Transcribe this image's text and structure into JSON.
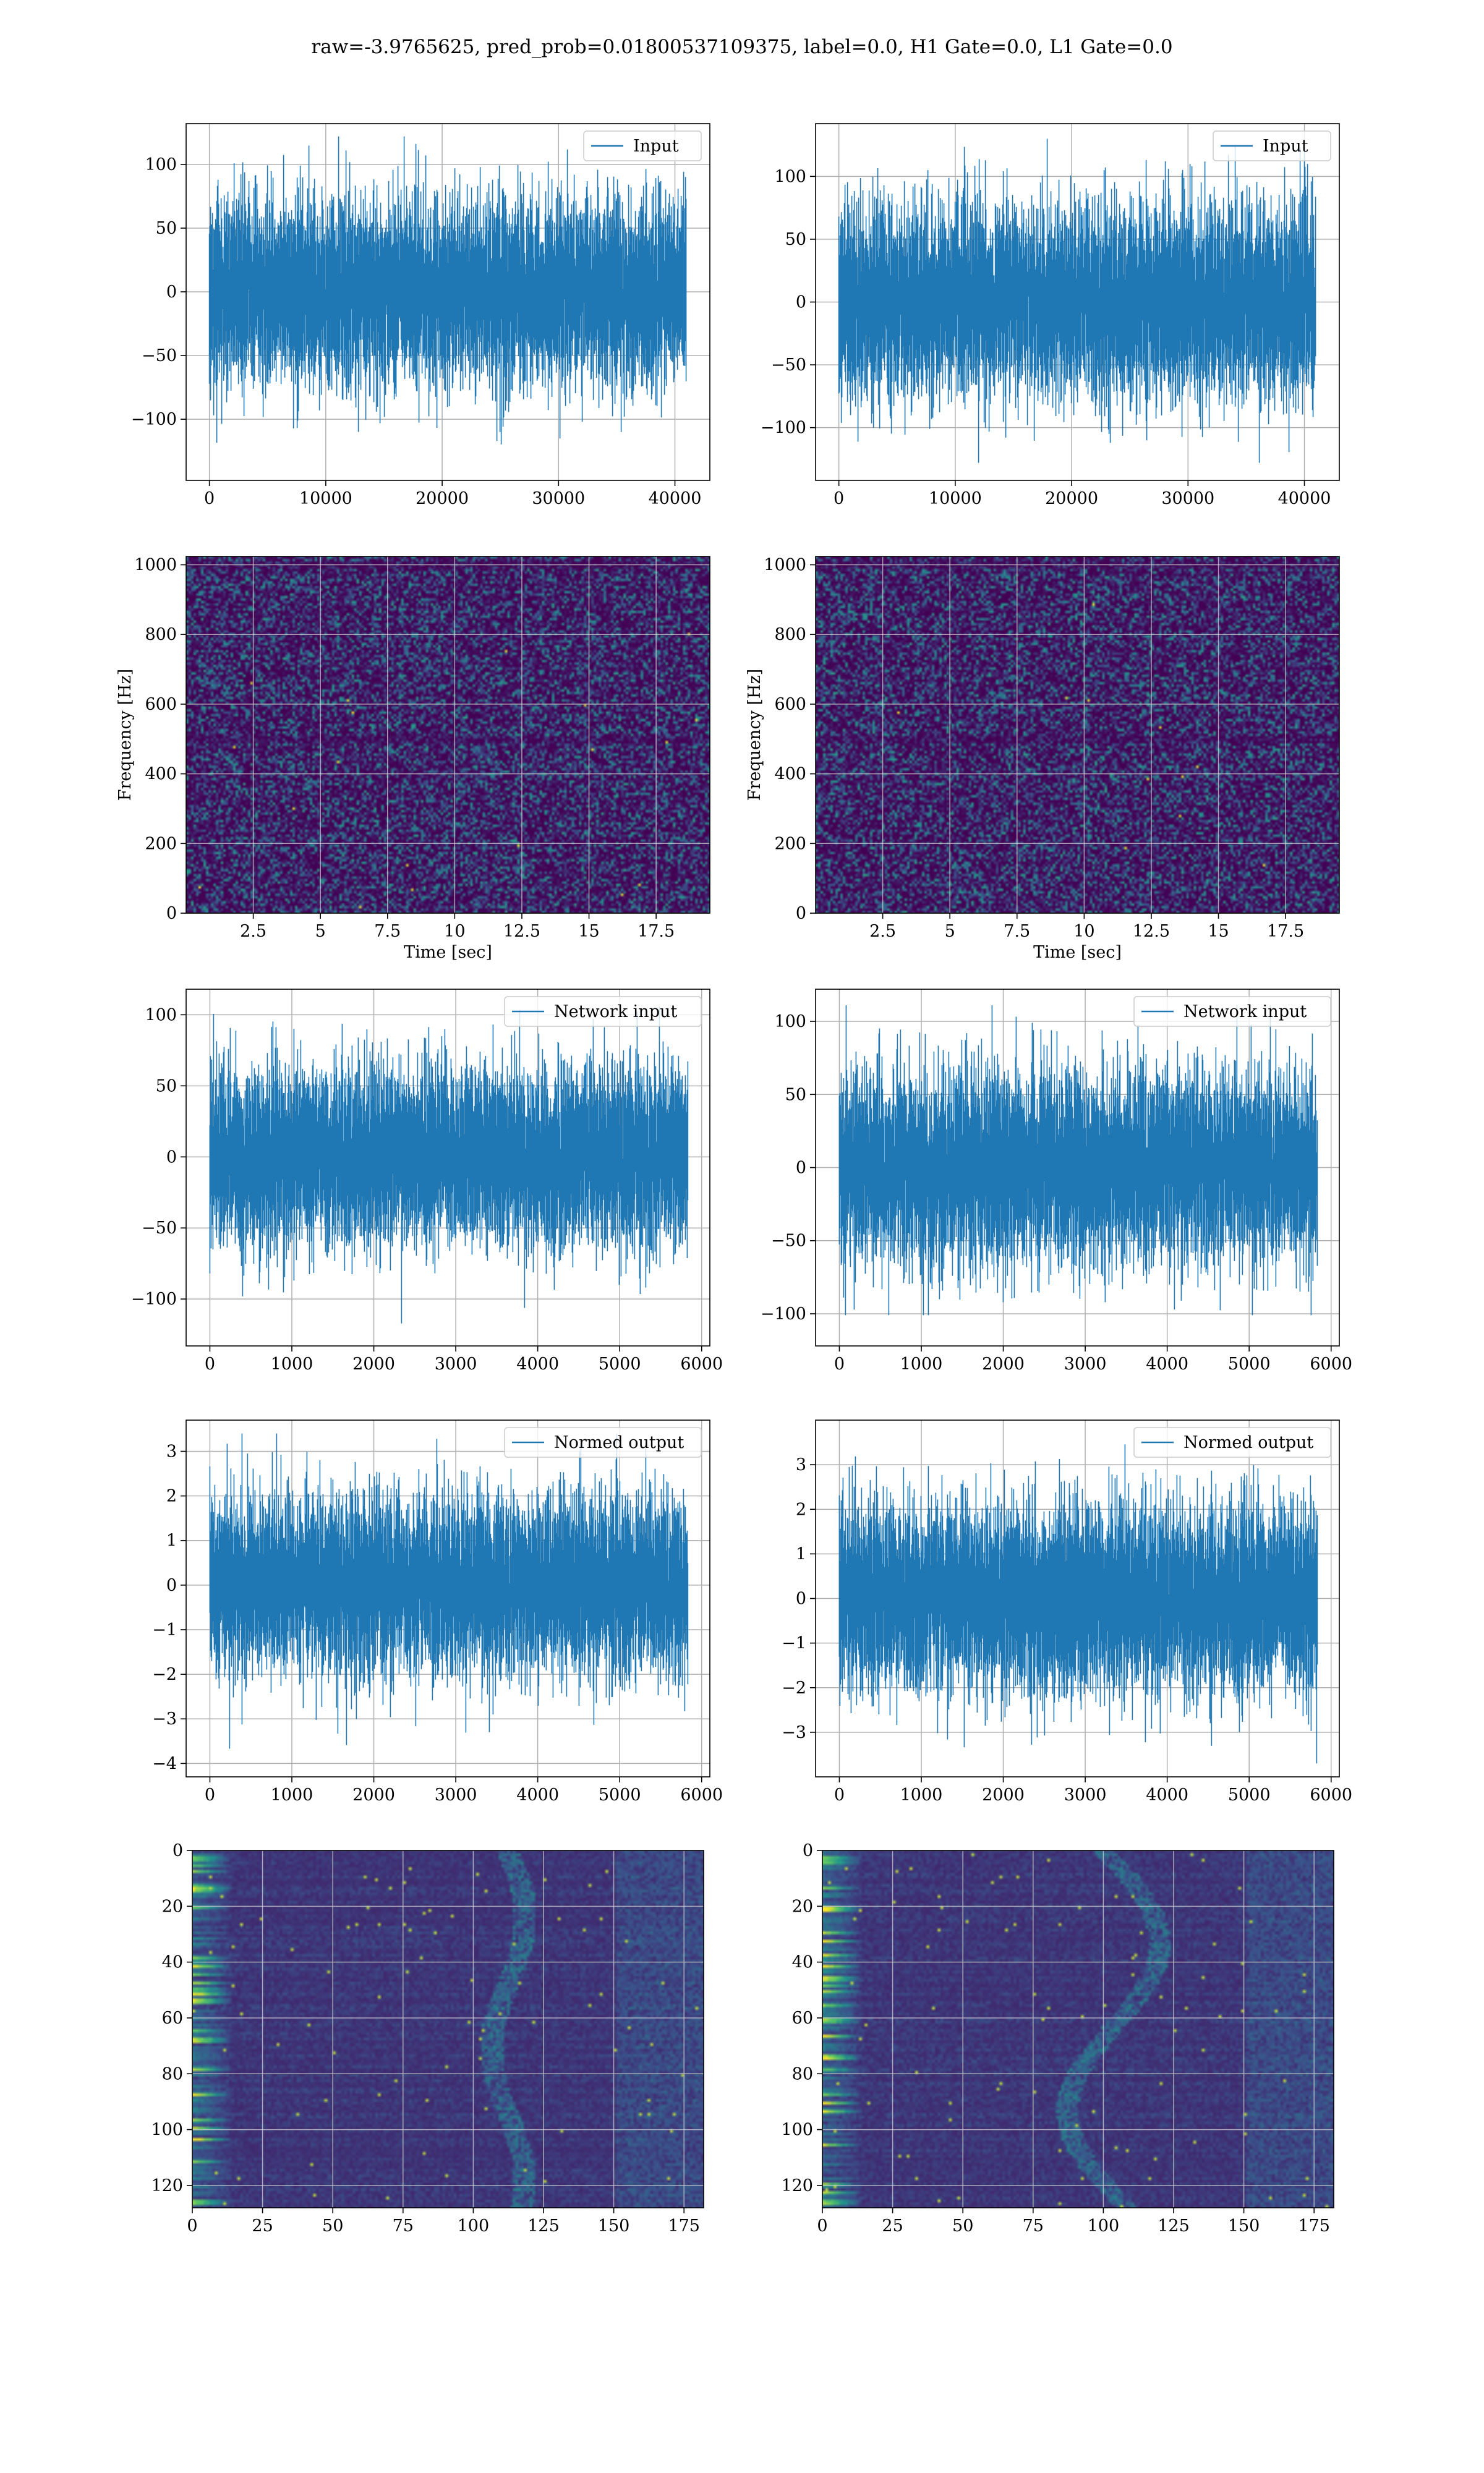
{
  "title": "raw=-3.9765625, pred_prob=0.01800537109375, label=0.0, H1 Gate=0.0, L1 Gate=0.0",
  "colors": {
    "line": "#1f77b4",
    "grid": "#b0b0b0",
    "spectrogram_low": "#440154",
    "spectrogram_high": "#fde725"
  },
  "chart_data": [
    {
      "id": "input-h1",
      "type": "line",
      "series": [
        {
          "name": "Input",
          "n": 40960,
          "amplitude_range": [
            -135,
            122
          ]
        }
      ],
      "xlim": [
        -2000,
        43000
      ],
      "ylim": [
        -148,
        132
      ],
      "xticks": [
        0,
        10000,
        20000,
        30000,
        40000
      ],
      "yticks": [
        -100,
        -50,
        0,
        50,
        100
      ],
      "xlabel": "",
      "ylabel": "",
      "grid": true,
      "legend": "upper right"
    },
    {
      "id": "input-l1",
      "type": "line",
      "series": [
        {
          "name": "Input",
          "n": 40960,
          "amplitude_range": [
            -128,
            130
          ]
        }
      ],
      "xlim": [
        -2000,
        43000
      ],
      "ylim": [
        -142,
        142
      ],
      "xticks": [
        0,
        10000,
        20000,
        30000,
        40000
      ],
      "yticks": [
        -100,
        -50,
        0,
        50,
        100
      ],
      "xlabel": "",
      "ylabel": "",
      "grid": true,
      "legend": "upper right"
    },
    {
      "id": "spectrogram-h1",
      "type": "heatmap",
      "xlim": [
        0,
        19.5
      ],
      "ylim": [
        0,
        1024
      ],
      "xticks": [
        2.5,
        5.0,
        7.5,
        10.0,
        12.5,
        15.0,
        17.5
      ],
      "yticks": [
        0,
        200,
        400,
        600,
        800,
        1000
      ],
      "xlabel": "Time [sec]",
      "ylabel": "Frequency [Hz]",
      "grid": true
    },
    {
      "id": "spectrogram-l1",
      "type": "heatmap",
      "xlim": [
        0,
        19.5
      ],
      "ylim": [
        0,
        1024
      ],
      "xticks": [
        2.5,
        5.0,
        7.5,
        10.0,
        12.5,
        15.0,
        17.5
      ],
      "yticks": [
        0,
        200,
        400,
        600,
        800,
        1000
      ],
      "xlabel": "Time [sec]",
      "ylabel": "Frequency [Hz]",
      "grid": true
    },
    {
      "id": "network-input-h1",
      "type": "line",
      "series": [
        {
          "name": "Network input",
          "n": 5830,
          "amplitude_range": [
            -122,
            106
          ]
        }
      ],
      "xlim": [
        -290,
        6100
      ],
      "ylim": [
        -133,
        118
      ],
      "xticks": [
        0,
        1000,
        2000,
        3000,
        4000,
        5000,
        6000
      ],
      "yticks": [
        -100,
        -50,
        0,
        50,
        100
      ],
      "xlabel": "",
      "ylabel": "",
      "grid": true,
      "legend": "upper right"
    },
    {
      "id": "network-input-l1",
      "type": "line",
      "series": [
        {
          "name": "Network input",
          "n": 5830,
          "amplitude_range": [
            -101,
            111
          ]
        }
      ],
      "xlim": [
        -290,
        6100
      ],
      "ylim": [
        -122,
        122
      ],
      "xticks": [
        0,
        1000,
        2000,
        3000,
        4000,
        5000,
        6000
      ],
      "yticks": [
        -100,
        -50,
        0,
        50,
        100
      ],
      "xlabel": "",
      "ylabel": "",
      "grid": true,
      "legend": "upper right"
    },
    {
      "id": "normed-output-h1",
      "type": "line",
      "series": [
        {
          "name": "Normed output",
          "n": 5830,
          "amplitude_range": [
            -3.9,
            3.4
          ]
        }
      ],
      "xlim": [
        -290,
        6100
      ],
      "ylim": [
        -4.3,
        3.7
      ],
      "xticks": [
        0,
        1000,
        2000,
        3000,
        4000,
        5000,
        6000
      ],
      "yticks": [
        -4,
        -3,
        -2,
        -1,
        0,
        1,
        2,
        3
      ],
      "xlabel": "",
      "ylabel": "",
      "grid": true,
      "legend": "upper right"
    },
    {
      "id": "normed-output-l1",
      "type": "line",
      "series": [
        {
          "name": "Normed output",
          "n": 5830,
          "amplitude_range": [
            -3.7,
            3.6
          ]
        }
      ],
      "xlim": [
        -290,
        6100
      ],
      "ylim": [
        -4.0,
        4.0
      ],
      "xticks": [
        0,
        1000,
        2000,
        3000,
        4000,
        5000,
        6000
      ],
      "yticks": [
        -3,
        -2,
        -1,
        0,
        1,
        2,
        3
      ],
      "xlabel": "",
      "ylabel": "",
      "grid": true,
      "legend": "upper right"
    },
    {
      "id": "feature-map-h1",
      "type": "heatmap",
      "xlim": [
        0,
        182
      ],
      "ylim": [
        128,
        0
      ],
      "xticks": [
        0,
        25,
        50,
        75,
        100,
        125,
        150,
        175
      ],
      "yticks": [
        0,
        20,
        40,
        60,
        80,
        100,
        120
      ],
      "xlabel": "",
      "ylabel": "",
      "grid": true
    },
    {
      "id": "feature-map-l1",
      "type": "heatmap",
      "xlim": [
        0,
        182
      ],
      "ylim": [
        128,
        0
      ],
      "xticks": [
        0,
        25,
        50,
        75,
        100,
        125,
        150,
        175
      ],
      "yticks": [
        0,
        20,
        40,
        60,
        80,
        100,
        120
      ],
      "xlabel": "",
      "ylabel": "",
      "grid": true
    }
  ]
}
